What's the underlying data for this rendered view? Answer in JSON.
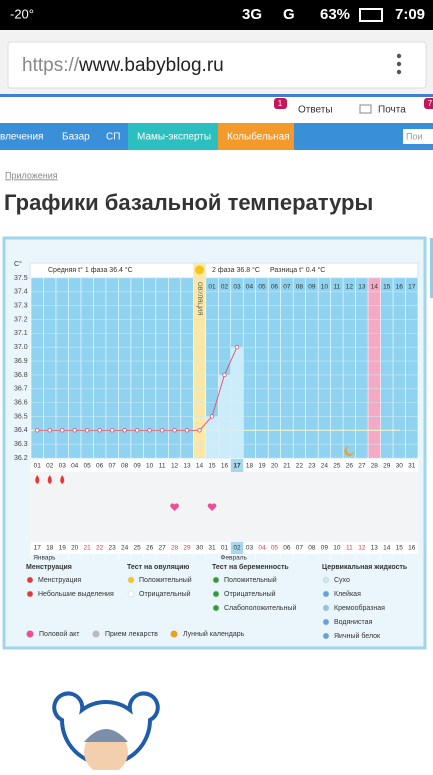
{
  "status_bar": {
    "temperature": "-20°",
    "network": "3G",
    "network2": "G",
    "battery": "63%",
    "time": "7:09"
  },
  "browser": {
    "url_scheme": "https://",
    "url_host": "www.babyblog.ru"
  },
  "header": {
    "answers_badge": "1",
    "answers": "Ответы",
    "mail": "Почта",
    "badge2": "7"
  },
  "nav": [
    "влечения",
    "Базар",
    "СП",
    "Мамы-эксперты",
    "Колыбельная"
  ],
  "search": "Пои",
  "breadcrumb": "Приложения",
  "title": "Графики базальной температуры",
  "chart_data": {
    "type": "line",
    "y_label": "C°",
    "summary": [
      "Средняя t° 1 фаза 36.4 °C",
      "2 фаза 36.8 °C",
      "Разница t° 0.4 °C"
    ],
    "ovulation_label": "ОВУЛЯЦИЯ",
    "ovulation_day": "14",
    "expected_period_day": "28",
    "current_day": "17",
    "current_date": "02",
    "cover_line": 36.4,
    "categories": [
      "01",
      "02",
      "03",
      "04",
      "05",
      "06",
      "07",
      "08",
      "09",
      "10",
      "11",
      "12",
      "13",
      "14",
      "15",
      "16",
      "17",
      "18",
      "19",
      "20",
      "21",
      "22",
      "23",
      "24",
      "25",
      "26",
      "27",
      "28",
      "29",
      "30",
      "31"
    ],
    "phase_days": [
      null,
      null,
      null,
      null,
      null,
      null,
      null,
      null,
      null,
      null,
      null,
      null,
      null,
      null,
      "01",
      "02",
      "03",
      "04",
      "05",
      "06",
      "07",
      "08",
      "09",
      "10",
      "11",
      "12",
      "13",
      "14",
      "15",
      "16",
      "17"
    ],
    "dates": [
      "17",
      "18",
      "19",
      "20",
      "21",
      "22",
      "23",
      "24",
      "25",
      "26",
      "27",
      "28",
      "29",
      "30",
      "31",
      "01",
      "02",
      "03",
      "04",
      "05",
      "06",
      "07",
      "08",
      "09",
      "10",
      "11",
      "12",
      "13",
      "14",
      "15",
      "16"
    ],
    "weekends": [
      "21",
      "22",
      "28",
      "29",
      "04",
      "05",
      "11",
      "12"
    ],
    "months": [
      "Январь",
      "Февраль"
    ],
    "menstruation_days": [
      "01",
      "02",
      "03"
    ],
    "intercourse_days": [
      "12",
      "15"
    ],
    "moon_day": "26",
    "series": [
      {
        "name": "Температура",
        "color": "#e0506a",
        "values": [
          36.4,
          36.4,
          36.4,
          36.4,
          36.4,
          36.4,
          36.4,
          36.4,
          36.4,
          36.4,
          36.4,
          36.4,
          36.4,
          36.4,
          36.5,
          36.8,
          37.0,
          null,
          null,
          null,
          null,
          null,
          null,
          null,
          null,
          null,
          null,
          null,
          null,
          null,
          null
        ]
      }
    ],
    "ylim": [
      36.2,
      37.5
    ],
    "yticks": [
      36.2,
      36.3,
      36.4,
      36.5,
      36.6,
      36.7,
      36.8,
      36.9,
      {
        "value": 37,
        "label": "37.0"
      },
      37.1,
      37.2,
      37.3,
      37.4,
      37.5
    ],
    "grid": true
  },
  "legend": {
    "groups": [
      {
        "title": "Менструация",
        "items": [
          "Менструация",
          "Небольшие выделения"
        ]
      },
      {
        "title": "Тест на овуляцию",
        "items": [
          "Положительный",
          "Отрицательный"
        ]
      },
      {
        "title": "Тест на беременность",
        "items": [
          "Положительный",
          "Отрицательный",
          "Слабоположительный"
        ]
      },
      {
        "title": "Цервикальная жидкость",
        "items": [
          "Сухо",
          "Клейкая",
          "Кремообразная",
          "Водянистая",
          "Яичный белок"
        ]
      }
    ],
    "extra": [
      "Половой акт",
      "Прием лекарств",
      "Лунный календарь"
    ]
  }
}
